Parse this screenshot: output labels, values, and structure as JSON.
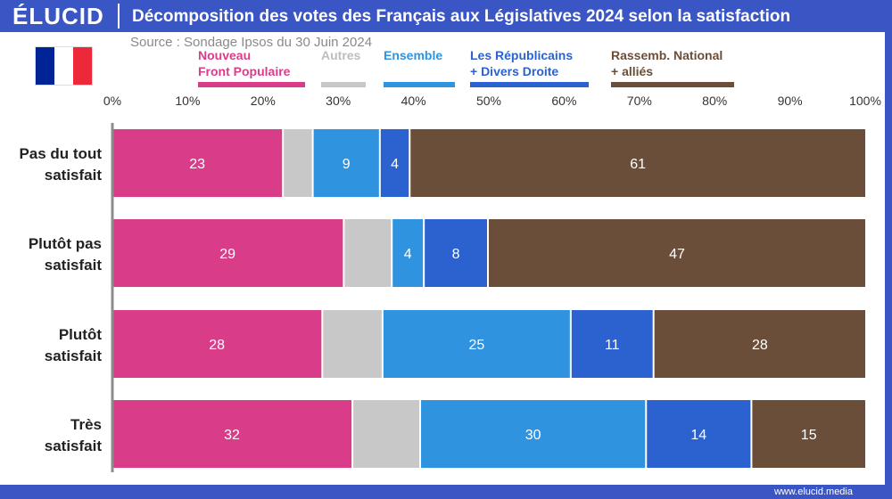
{
  "header": {
    "logo": "ÉLUCID",
    "title": "Décomposition des votes des Français aux Législatives 2024 selon la satisfaction"
  },
  "source": "Source : Sondage Ipsos du 30 Juin 2024",
  "footer": {
    "url": "www.elucid.media"
  },
  "flag": {
    "colors": [
      "#002395",
      "#ffffff",
      "#ed2939"
    ]
  },
  "legend": [
    {
      "label": "Nouveau\nFront Populaire",
      "color": "#d93d8a"
    },
    {
      "label": "Autres",
      "color": "#c8c8c8"
    },
    {
      "label": "Ensemble",
      "color": "#2f93e0"
    },
    {
      "label": "Les Républicains\n+ Divers Droite",
      "color": "#2b62cf"
    },
    {
      "label": "Rassemb. National\n+ alliés",
      "color": "#6b4e3a"
    }
  ],
  "chart_data": {
    "type": "bar",
    "orientation": "horizontal",
    "stacked": true,
    "xlim": [
      0,
      100
    ],
    "x_ticks": [
      "0%",
      "10%",
      "20%",
      "30%",
      "40%",
      "50%",
      "60%",
      "70%",
      "80%",
      "90%",
      "100%"
    ],
    "categories": [
      "Pas du tout\nsatisfait",
      "Plutôt pas\nsatisfait",
      "Plutôt\nsatisfait",
      "Très\nsatisfait"
    ],
    "series": [
      {
        "name": "Nouveau Front Populaire",
        "color": "#d93d8a",
        "values": [
          23,
          29,
          28,
          32
        ],
        "labels": [
          "23",
          "29",
          "28",
          "32"
        ]
      },
      {
        "name": "Autres",
        "color": "#c8c8c8",
        "values": [
          4,
          6,
          8,
          9
        ],
        "labels": [
          "",
          "",
          "",
          ""
        ]
      },
      {
        "name": "Ensemble",
        "color": "#2f93e0",
        "values": [
          9,
          4,
          25,
          30
        ],
        "labels": [
          "9",
          "4",
          "25",
          "30"
        ]
      },
      {
        "name": "Les Républicains + Divers Droite",
        "color": "#2b62cf",
        "values": [
          4,
          8,
          11,
          14
        ],
        "labels": [
          "4",
          "8",
          "11",
          "14"
        ]
      },
      {
        "name": "Rassemb. National + alliés",
        "color": "#6b4e3a",
        "values": [
          61,
          47,
          28,
          15
        ],
        "labels": [
          "61",
          "47",
          "28",
          "15"
        ]
      }
    ]
  }
}
